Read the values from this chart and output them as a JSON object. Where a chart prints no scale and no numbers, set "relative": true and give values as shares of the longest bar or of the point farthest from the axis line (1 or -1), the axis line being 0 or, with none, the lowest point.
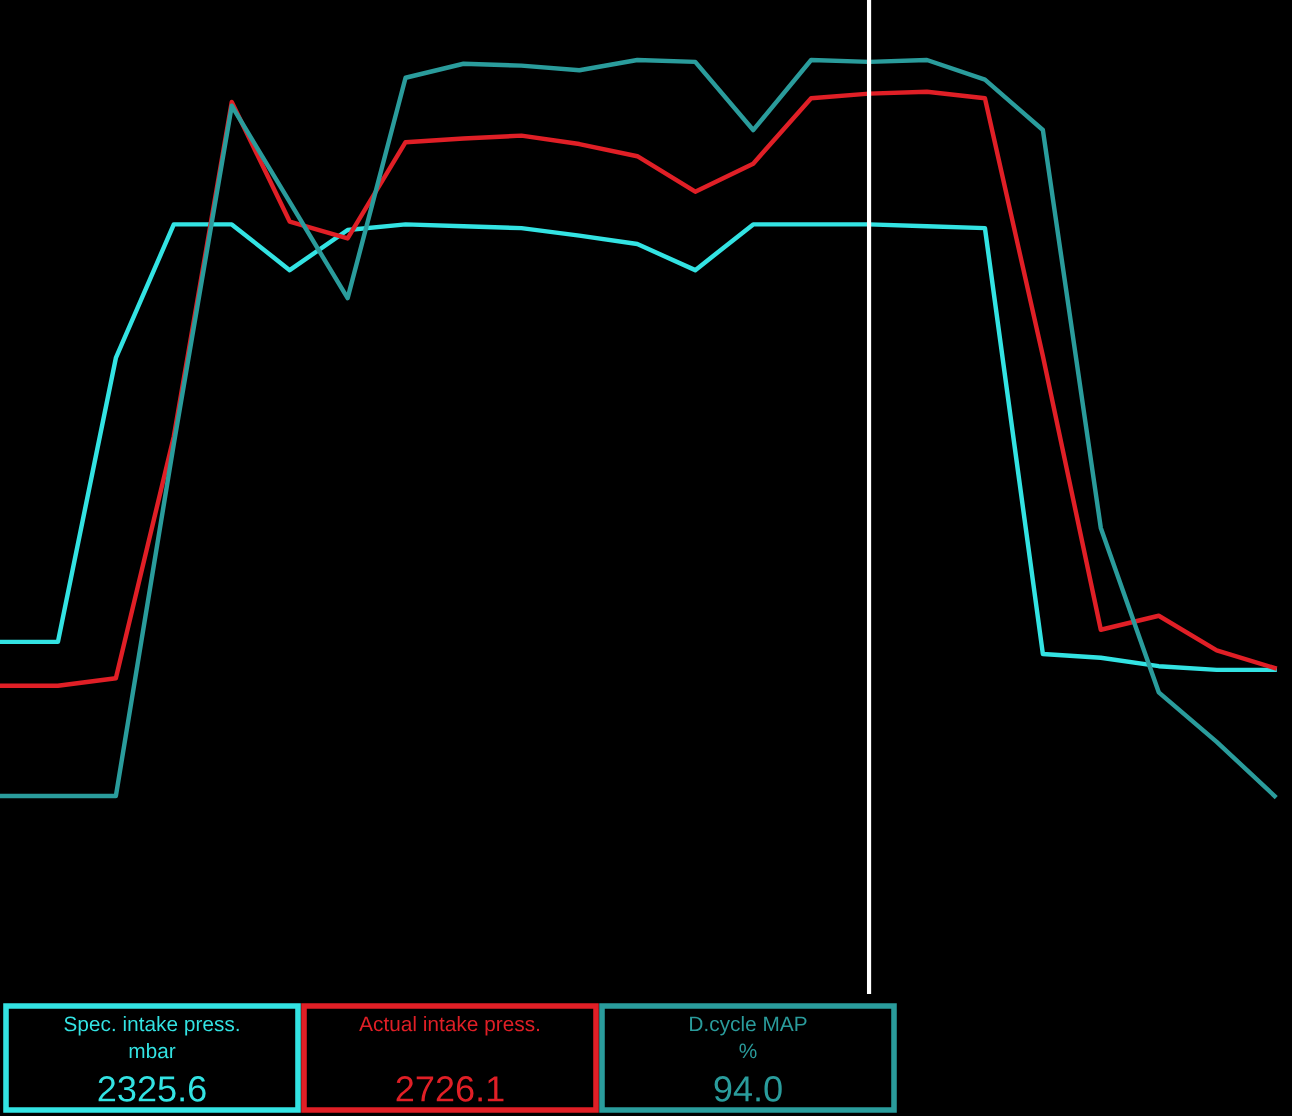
{
  "chart_data": {
    "type": "line",
    "relative": true,
    "legend": "bottom",
    "marker": "none",
    "line_style": "solid",
    "categories": [
      null,
      null,
      null,
      null,
      null,
      null,
      null,
      null,
      null,
      null,
      null,
      null,
      null,
      null,
      null,
      null,
      null,
      null,
      null,
      null,
      null,
      null,
      null
    ],
    "series": [
      {
        "name": "Spec. intake press.\nmbar",
        "color": "#33e3e3",
        "values": [
          0.377,
          0.377,
          0.681,
          0.824,
          0.824,
          0.775,
          0.818,
          0.824,
          0.822,
          0.82,
          0.812,
          0.803,
          0.775,
          0.824,
          0.824,
          0.824,
          0.822,
          0.82,
          0.364,
          0.36,
          0.351,
          0.347,
          0.347
        ]
      },
      {
        "name": "Actual intake press.",
        "color": "#e01f26",
        "values": [
          0.33,
          0.33,
          0.338,
          0.597,
          0.955,
          0.827,
          0.809,
          0.912,
          0.916,
          0.919,
          0.91,
          0.897,
          0.859,
          0.889,
          0.959,
          0.964,
          0.966,
          0.959,
          0.683,
          0.39,
          0.405,
          0.368,
          0.349
        ]
      },
      {
        "name": "D.cycle MAP\n%",
        "color": "#2a9c9c",
        "values": [
          0.212,
          0.212,
          0.212,
          0.589,
          0.951,
          0.848,
          0.745,
          0.981,
          0.996,
          0.994,
          0.989,
          1,
          0.998,
          0.925,
          1,
          0.998,
          1,
          0.979,
          0.925,
          0.499,
          0.323,
          0.27,
          0.212
        ]
      }
    ],
    "annotations": [
      "2325.6",
      "2726.1",
      "94.0"
    ]
  }
}
